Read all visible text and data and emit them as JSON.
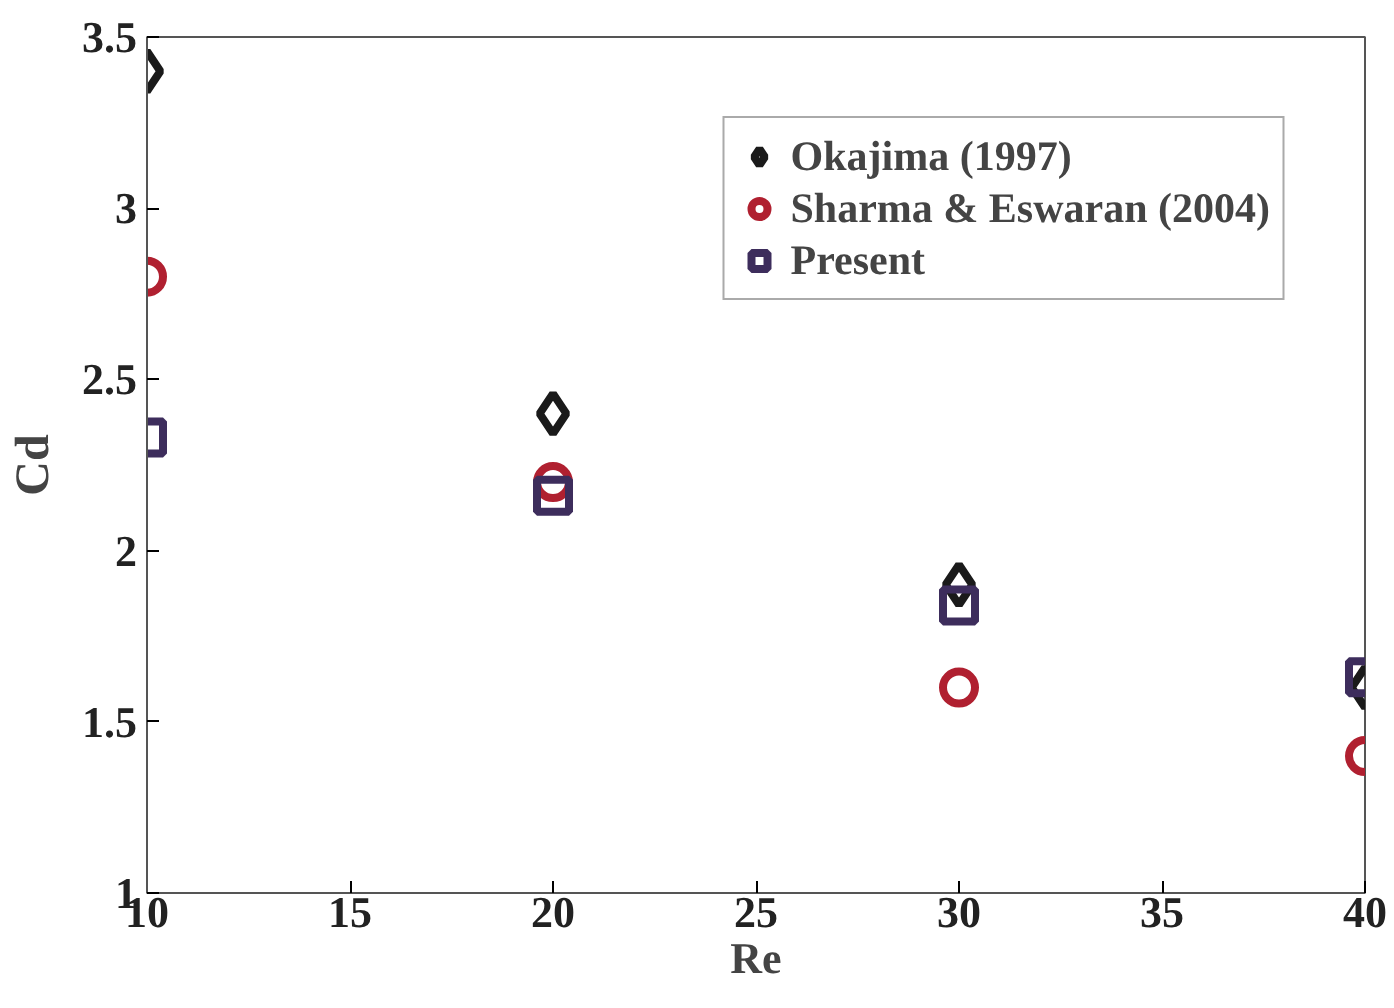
{
  "chart_data": {
    "type": "scatter",
    "xlabel": "Re",
    "ylabel": "Cd",
    "x": [
      10,
      20,
      30,
      40
    ],
    "series": [
      {
        "name": "Okajima (1997)",
        "color": "#1a1a1a",
        "marker": "diamond",
        "values": [
          3.4,
          2.4,
          1.9,
          1.6
        ]
      },
      {
        "name": "Sharma & Eswaran (2004)",
        "color": "#b02030",
        "marker": "circle",
        "values": [
          2.8,
          2.2,
          1.6,
          1.4
        ]
      },
      {
        "name": "Present",
        "color": "#3d2d5c",
        "marker": "square",
        "values": [
          2.33,
          2.16,
          1.84,
          1.63
        ]
      }
    ],
    "xlim": [
      10,
      40
    ],
    "ylim": [
      1,
      3.5
    ],
    "xticks": [
      10,
      15,
      20,
      25,
      30,
      35,
      40
    ],
    "yticks": [
      1,
      1.5,
      2,
      2.5,
      3,
      3.5
    ],
    "grid": false,
    "legend": "top right"
  }
}
